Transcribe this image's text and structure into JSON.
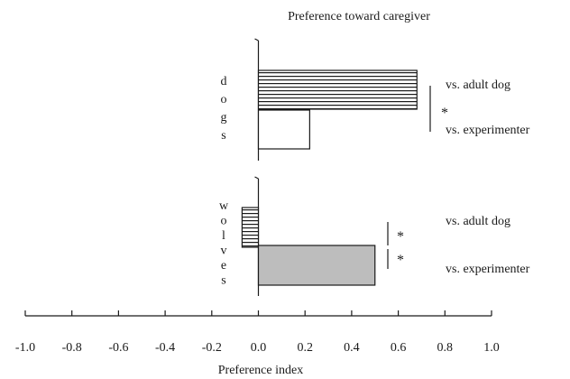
{
  "chart_data": {
    "type": "bar",
    "orientation": "horizontal",
    "title": "Preference toward caregiver",
    "xlabel": "Preference index",
    "xlim": [
      -1.0,
      1.0
    ],
    "xticks": [
      "-1.0",
      "-0.8",
      "-0.6",
      "-0.4",
      "-0.2",
      "0.0",
      "0.2",
      "0.4",
      "0.6",
      "0.8",
      "1.0"
    ],
    "groups": [
      {
        "name": "dogs",
        "letters": [
          "d",
          "o",
          "g",
          "s"
        ],
        "bars": [
          {
            "label": "vs. adult dog",
            "value": 0.68,
            "fill": "horizontal-stripes"
          },
          {
            "label": "vs. experimenter",
            "value": 0.22,
            "fill": "white"
          }
        ],
        "significance": [
          "*"
        ]
      },
      {
        "name": "wolves",
        "letters": [
          "w",
          "o",
          "l",
          "v",
          "e",
          "s"
        ],
        "bars": [
          {
            "label": "vs. adult dog",
            "value": -0.07,
            "fill": "horizontal-stripes"
          },
          {
            "label": "vs. experimenter",
            "value": 0.5,
            "fill": "gray"
          }
        ],
        "significance": [
          "*",
          "*"
        ]
      }
    ],
    "colors": {
      "gray_fill": "#bdbdbd",
      "ink": "#1a1a1a"
    }
  }
}
